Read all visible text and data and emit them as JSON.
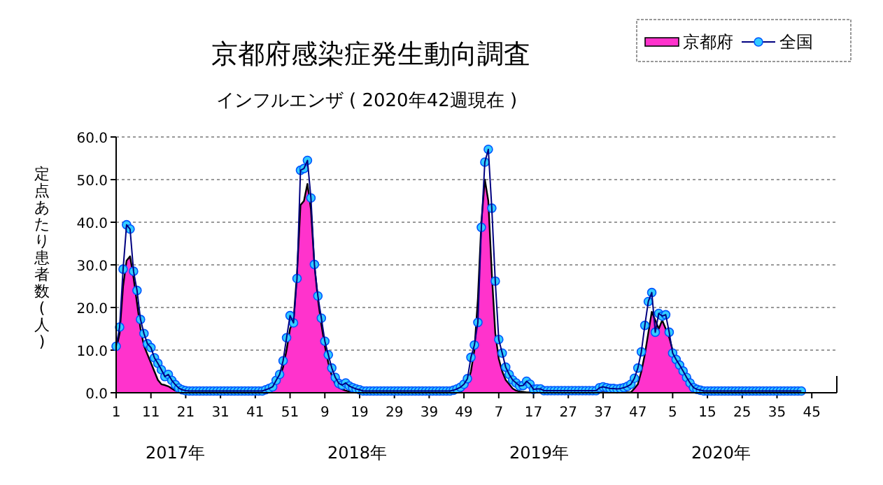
{
  "chart_data": {
    "type": "area",
    "title": "京都府感染症発生動向調査",
    "subtitle": "インフルエンザ ( 2020年42週現在 )",
    "ylabel": "定点あたり患者数(人)",
    "annotations": [
      "2017年",
      "2018年",
      "2019年",
      "2020年"
    ],
    "categories": [
      "1",
      null,
      null,
      null,
      null,
      null,
      null,
      null,
      null,
      null,
      "11",
      null,
      null,
      null,
      null,
      null,
      null,
      null,
      null,
      null,
      "21",
      null,
      null,
      null,
      null,
      null,
      null,
      null,
      null,
      null,
      "31",
      null,
      null,
      null,
      null,
      null,
      null,
      null,
      null,
      null,
      "41",
      null,
      null,
      null,
      null,
      null,
      null,
      null,
      null,
      null,
      "51",
      null,
      null,
      null,
      null,
      null,
      null,
      null,
      null,
      null,
      "9",
      null,
      null,
      null,
      null,
      null,
      null,
      null,
      null,
      null,
      "19",
      null,
      null,
      null,
      null,
      null,
      null,
      null,
      null,
      null,
      "29",
      null,
      null,
      null,
      null,
      null,
      null,
      null,
      null,
      null,
      "39",
      null,
      null,
      null,
      null,
      null,
      null,
      null,
      null,
      null,
      "49",
      null,
      null,
      null,
      null,
      null,
      null,
      null,
      null,
      null,
      "7",
      null,
      null,
      null,
      null,
      null,
      null,
      null,
      null,
      null,
      "17",
      null,
      null,
      null,
      null,
      null,
      null,
      null,
      null,
      null,
      "27",
      null,
      null,
      null,
      null,
      null,
      null,
      null,
      null,
      null,
      "37",
      null,
      null,
      null,
      null,
      null,
      null,
      null,
      null,
      null,
      "47",
      null,
      null,
      null,
      null,
      null,
      null,
      null,
      null,
      null,
      "5",
      null,
      null,
      null,
      null,
      null,
      null,
      null,
      null,
      null,
      "15",
      null,
      null,
      null,
      null,
      null,
      null,
      null,
      null,
      null,
      "25",
      null,
      null,
      null,
      null,
      null,
      null,
      null,
      null,
      null,
      "35",
      null,
      null,
      null,
      null,
      null,
      null,
      null,
      null,
      null,
      "45",
      null,
      null,
      null,
      null,
      null,
      null,
      null
    ],
    "series": [
      {
        "name": "京都府",
        "color": "#ff33cc",
        "values": [
          10,
          14,
          25,
          31,
          32,
          27,
          21,
          15,
          11,
          9,
          7,
          5,
          3,
          2,
          1.8,
          1.5,
          1,
          0.5,
          0.3,
          0.2,
          0.2,
          0.2,
          0.2,
          0.2,
          0.2,
          0.2,
          0.2,
          0.2,
          0.2,
          0.2,
          0.2,
          0.2,
          0.2,
          0.2,
          0.2,
          0.2,
          0.2,
          0.2,
          0.2,
          0.2,
          0.2,
          0.2,
          0.2,
          0.2,
          0.2,
          1,
          2,
          3.5,
          6,
          10,
          15,
          17,
          28,
          44,
          45,
          49,
          43,
          30,
          22,
          16,
          11,
          7,
          4,
          2,
          1.2,
          0.8,
          0.5,
          0.3,
          0.2,
          0.1,
          0.1,
          0.1,
          0.1,
          0.1,
          0.1,
          0.1,
          0.1,
          0.1,
          0.1,
          0.1,
          0.1,
          0.1,
          0.1,
          0.1,
          0.1,
          0.1,
          0.1,
          0.1,
          0.1,
          0.1,
          0.1,
          0.1,
          0.1,
          0.1,
          0.1,
          0.1,
          0.1,
          0.1,
          0.1,
          0.1,
          1,
          2,
          5,
          10,
          22,
          40,
          50,
          45,
          28,
          14,
          8,
          5,
          3,
          2,
          1,
          0.5,
          0.3,
          0.2,
          0.1,
          0.1,
          0.1,
          0.1,
          0.1,
          0.1,
          0.1,
          0.1,
          0.1,
          0.1,
          0.1,
          0.1,
          0.1,
          0.1,
          0.1,
          0.1,
          0.1,
          0.1,
          0.1,
          0.1,
          0.1,
          0.1,
          0.1,
          0.1,
          0.1,
          0.1,
          0.1,
          0.1,
          0.1,
          0.1,
          0.1,
          1,
          2,
          5,
          9,
          14,
          19,
          17,
          15,
          17,
          15,
          13,
          10,
          8,
          7,
          5,
          3,
          1,
          0.5,
          0.2,
          0.1,
          0.1,
          0.1,
          0.1,
          0.1,
          0.1,
          0.1,
          0.1,
          0.1,
          0.1,
          0.1,
          0.1,
          0.1,
          0.1,
          0.1,
          0.1,
          0.1,
          0.1,
          0.1,
          0.1,
          0.1,
          0.1,
          0.1,
          0.1,
          0.1,
          0.1,
          0.1,
          0.1,
          0.1,
          0.1,
          null,
          null,
          null,
          null,
          null,
          null,
          null,
          null,
          null,
          null
        ]
      },
      {
        "name": "全国",
        "type": "line",
        "marker": "circle",
        "color": "#33ccff",
        "values": [
          10.9,
          15.4,
          29,
          39.4,
          38.4,
          28.5,
          24,
          17.2,
          13.9,
          11.5,
          10.6,
          8.2,
          6.9,
          5.4,
          3.8,
          4.3,
          2.9,
          1.9,
          1.1,
          0.7,
          0.5,
          0.4,
          0.4,
          0.4,
          0.4,
          0.4,
          0.4,
          0.4,
          0.4,
          0.4,
          0.4,
          0.4,
          0.4,
          0.4,
          0.4,
          0.4,
          0.4,
          0.4,
          0.4,
          0.4,
          0.4,
          0.4,
          0.4,
          0.7,
          1,
          1.4,
          2.9,
          4.3,
          7.5,
          12.9,
          18.1,
          16.4,
          26.8,
          52.2,
          52.6,
          54.5,
          45.7,
          30.1,
          22.7,
          17.5,
          12.1,
          8.9,
          5.8,
          3.6,
          2.2,
          1.8,
          2.3,
          1.6,
          1.2,
          0.9,
          0.7,
          0.4,
          0.4,
          0.4,
          0.4,
          0.4,
          0.4,
          0.4,
          0.4,
          0.4,
          0.4,
          0.4,
          0.4,
          0.4,
          0.4,
          0.4,
          0.4,
          0.4,
          0.4,
          0.4,
          0.4,
          0.4,
          0.4,
          0.4,
          0.4,
          0.4,
          0.4,
          0.6,
          0.9,
          1.3,
          2,
          3.3,
          8.3,
          11.2,
          16.5,
          38.8,
          54.1,
          57.1,
          43.3,
          26.2,
          12.5,
          9.3,
          6,
          4.3,
          3,
          2.3,
          1.6,
          1.7,
          2.7,
          2,
          0.8,
          0.9,
          0.9,
          0.5,
          0.5,
          0.5,
          0.5,
          0.5,
          0.5,
          0.5,
          0.5,
          0.5,
          0.5,
          0.5,
          0.5,
          0.5,
          0.5,
          0.5,
          0.5,
          1.2,
          1.4,
          1.2,
          1,
          1,
          0.9,
          1,
          1.2,
          1.5,
          2,
          3.4,
          5.8,
          9.6,
          15.8,
          21.4,
          23.5,
          14.2,
          18.6,
          18,
          18.3,
          14.2,
          9.3,
          7.8,
          6.5,
          5.1,
          3.6,
          2.3,
          1.2,
          0.8,
          0.6,
          0.4,
          0.4,
          0.4,
          0.4,
          0.4,
          0.4,
          0.4,
          0.4,
          0.4,
          0.4,
          0.4,
          0.4,
          0.4,
          0.4,
          0.4,
          0.4,
          0.4,
          0.4,
          0.4,
          0.4,
          0.4,
          0.4,
          0.4,
          0.4,
          0.4,
          0.4,
          0.4,
          0.4,
          0.4,
          null,
          null,
          null,
          null,
          null,
          null,
          null,
          null,
          null,
          null
        ]
      }
    ],
    "grid": "y",
    "legend": "top right",
    "ylim": [
      0,
      60
    ],
    "yticks": [
      {
        "value": 0,
        "label": "0.0"
      },
      {
        "value": 10,
        "label": "10.0"
      },
      {
        "value": 20,
        "label": "20.0"
      },
      {
        "value": 30,
        "label": "30.0"
      },
      {
        "value": 40,
        "label": "40.0"
      },
      {
        "value": 50,
        "label": "50.0"
      },
      {
        "value": 60,
        "label": "60.0"
      }
    ]
  }
}
